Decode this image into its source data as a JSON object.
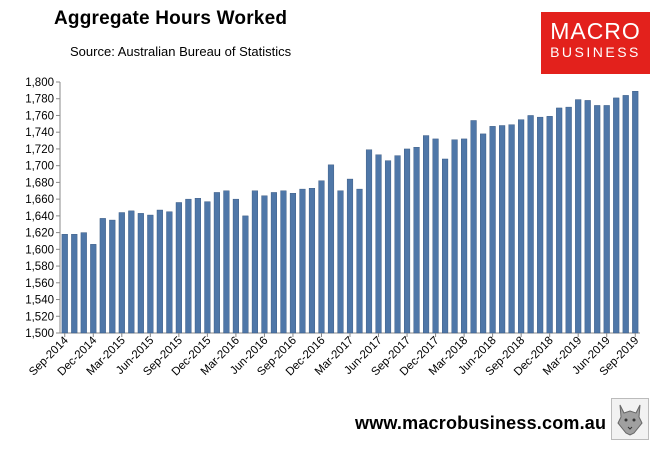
{
  "header": {
    "title": "Aggregate Hours Worked",
    "subtitle": "Source: Australian Bureau of Statistics"
  },
  "logo": {
    "line1": "MACRO",
    "line2": "BUSINESS",
    "color": "#e3211c"
  },
  "footer": {
    "url": "www.macrobusiness.com.au",
    "emblem_icon": "wolf-head-icon"
  },
  "chart_data": {
    "type": "bar",
    "title": "Aggregate Hours Worked",
    "xlabel": "",
    "ylabel": "",
    "ylim": [
      1500,
      1800
    ],
    "yticks": [
      1500,
      1520,
      1540,
      1560,
      1580,
      1600,
      1620,
      1640,
      1660,
      1680,
      1700,
      1720,
      1740,
      1760,
      1780,
      1800
    ],
    "ytick_labels": [
      "1,500",
      "1,520",
      "1,540",
      "1,560",
      "1,580",
      "1,600",
      "1,620",
      "1,640",
      "1,660",
      "1,680",
      "1,700",
      "1,720",
      "1,740",
      "1,760",
      "1,780",
      "1,800"
    ],
    "xtick_labels": [
      "Sep-2014",
      "Dec-2014",
      "Mar-2015",
      "Jun-2015",
      "Sep-2015",
      "Dec-2015",
      "Mar-2016",
      "Jun-2016",
      "Sep-2016",
      "Dec-2016",
      "Mar-2017",
      "Jun-2017",
      "Sep-2017",
      "Dec-2017",
      "Mar-2018",
      "Jun-2018",
      "Sep-2018",
      "Dec-2018",
      "Mar-2019",
      "Jun-2019",
      "Sep-2019"
    ],
    "grid": false,
    "legend": "none",
    "bar_color": "#4f77a8",
    "values": [
      1618,
      1618,
      1620,
      1606,
      1637,
      1635,
      1644,
      1646,
      1643,
      1641,
      1647,
      1645,
      1656,
      1660,
      1661,
      1657,
      1668,
      1670,
      1660,
      1640,
      1670,
      1664,
      1668,
      1670,
      1667,
      1672,
      1673,
      1682,
      1701,
      1670,
      1684,
      1672,
      1719,
      1713,
      1706,
      1712,
      1720,
      1722,
      1736,
      1732,
      1708,
      1731,
      1732,
      1754,
      1738,
      1747,
      1748,
      1749,
      1755,
      1760,
      1758,
      1759,
      1769,
      1770,
      1779,
      1778,
      1772,
      1772,
      1781,
      1784,
      1789
    ]
  }
}
